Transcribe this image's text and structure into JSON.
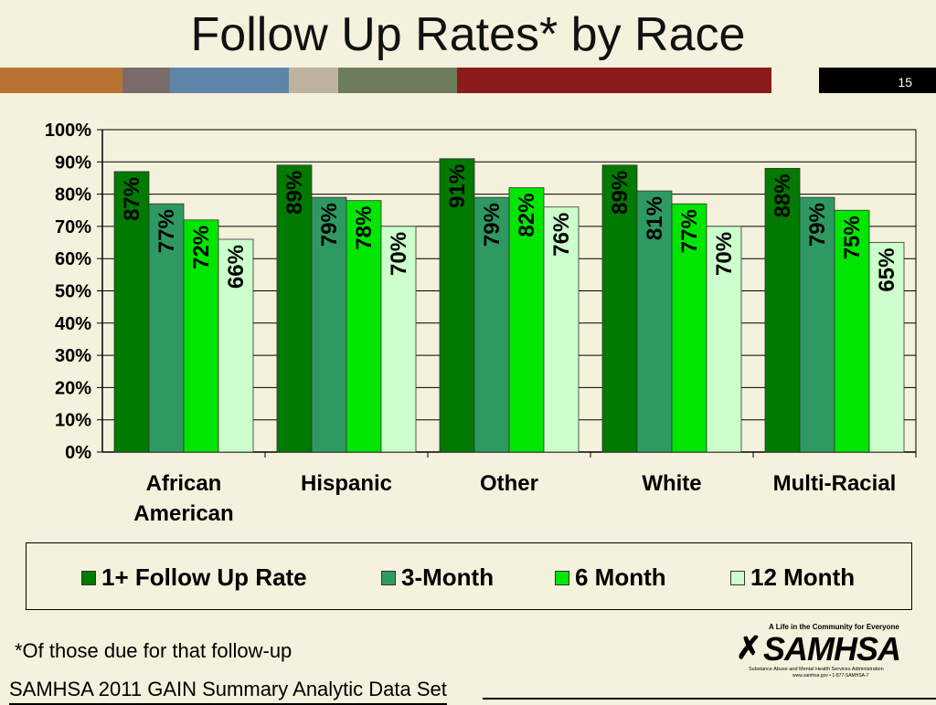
{
  "slide": {
    "title": "Follow Up Rates* by Race",
    "number": "15",
    "footnote": "*Of those due for that follow-up",
    "source": "SAMHSA 2011 GAIN Summary Analytic Data Set"
  },
  "stripe_colors": [
    "#b87333",
    "#7a6b6b",
    "#5f86a8",
    "#bdb3a0",
    "#6e7b5f",
    "#8b1a1a",
    "#f4f1dc",
    "#000000"
  ],
  "logo": {
    "tagline": "A Life in the Community for Everyone",
    "wordmark": "SAMHSA",
    "subtitle": "Substance Abuse and Mental Health Services Administration",
    "contact": "www.samhsa.gov • 1-877-SAMHSA-7"
  },
  "chart_data": {
    "type": "bar",
    "title": "Follow Up Rates* by Race",
    "xlabel": "",
    "ylabel": "",
    "ylim": [
      0,
      100
    ],
    "y_ticks": [
      "0%",
      "10%",
      "20%",
      "30%",
      "40%",
      "50%",
      "60%",
      "70%",
      "80%",
      "90%",
      "100%"
    ],
    "grid": true,
    "legend_position": "bottom",
    "categories": [
      "African American",
      "Hispanic",
      "Other",
      "White",
      "Multi-Racial"
    ],
    "category_lines": [
      [
        "African",
        "American"
      ],
      [
        "Hispanic"
      ],
      [
        "Other"
      ],
      [
        "White"
      ],
      [
        "Multi-Racial"
      ]
    ],
    "series": [
      {
        "name": "1+ Follow Up Rate",
        "color": "#007a00",
        "values": [
          87,
          89,
          91,
          89,
          88
        ],
        "labels": [
          "87%",
          "89%",
          "91%",
          "89%",
          "88%"
        ]
      },
      {
        "name": "3-Month",
        "color": "#2e9a62",
        "values": [
          77,
          79,
          79,
          81,
          79
        ],
        "labels": [
          "77%",
          "79%",
          "79%",
          "81%",
          "79%"
        ]
      },
      {
        "name": "6 Month",
        "color": "#00e600",
        "values": [
          72,
          78,
          82,
          77,
          75
        ],
        "labels": [
          "72%",
          "78%",
          "82%",
          "77%",
          "75%"
        ]
      },
      {
        "name": "12 Month",
        "color": "#ccffcc",
        "values": [
          66,
          70,
          76,
          70,
          65
        ],
        "labels": [
          "66%",
          "70%",
          "76%",
          "70%",
          "65%"
        ]
      }
    ]
  }
}
